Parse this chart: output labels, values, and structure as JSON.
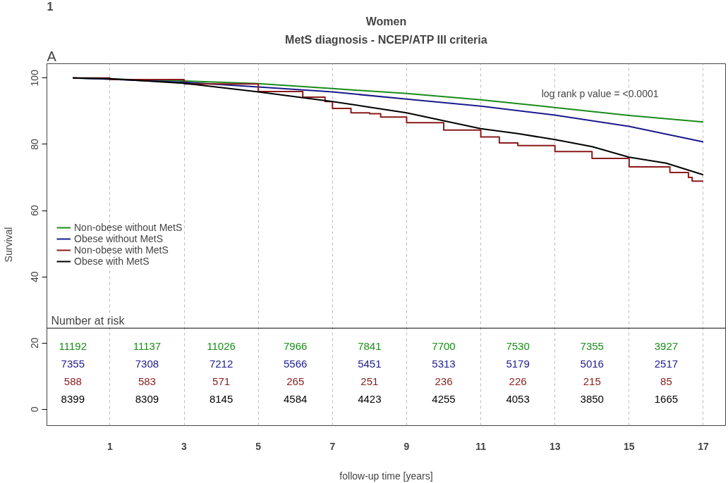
{
  "chart_data": {
    "type": "line",
    "title": "Women",
    "subtitle": "MetS diagnosis - NCEP/ATP III criteria",
    "xlabel": "follow-up time [years]",
    "ylabel": "Survival",
    "xlim": [
      -0.7,
      17.6
    ],
    "ylim": [
      -4.9,
      104.3
    ],
    "xticks": [
      1,
      3,
      5,
      7,
      9,
      11,
      13,
      15,
      17
    ],
    "yticks": [
      0,
      20,
      40,
      60,
      80,
      100
    ],
    "grid": "x",
    "legend": "left",
    "line_style": "solid",
    "marker": "none",
    "series": [
      {
        "name": "Non-obese without MetS",
        "color": "#1a8c1a",
        "x": [
          0,
          1,
          3,
          5,
          7,
          9,
          11,
          13,
          15,
          17
        ],
        "values": [
          100,
          99.7,
          99.1,
          98.3,
          96.8,
          95.3,
          93.4,
          91.1,
          88.7,
          86.7
        ]
      },
      {
        "name": "Obese without MetS",
        "color": "#1a1a8c",
        "x": [
          0,
          1,
          3,
          5,
          7,
          9,
          11,
          13,
          15,
          17
        ],
        "values": [
          100,
          99.6,
          98.7,
          97.3,
          95.8,
          93.6,
          91.5,
          88.8,
          85.4,
          80.7
        ]
      },
      {
        "name": "Non-obese with MetS",
        "color": "#8b1a1a",
        "type": "step",
        "x": [
          0,
          1,
          3,
          5,
          6.2,
          6.8,
          7,
          7.5,
          8,
          8.3,
          9,
          10,
          11,
          11.5,
          12,
          13,
          14,
          15,
          16,
          16.1,
          16.6,
          16.7,
          17
        ],
        "values": [
          100,
          99.5,
          98.2,
          95.9,
          94.2,
          92.9,
          90.8,
          89.5,
          89.2,
          88.2,
          86.5,
          84.3,
          82.2,
          80.4,
          79.6,
          77.8,
          75.7,
          73.2,
          73.2,
          71.5,
          70.0,
          68.9,
          68.9
        ]
      },
      {
        "name": "Obese with MetS",
        "color": "#000000",
        "x": [
          0,
          1,
          3,
          5,
          7,
          8,
          9,
          11,
          12,
          13,
          14,
          15,
          16,
          17
        ],
        "values": [
          100,
          99.8,
          98.4,
          95.8,
          92.9,
          91.2,
          89.5,
          84.7,
          83.2,
          81.4,
          79.3,
          76.1,
          74.3,
          70.8
        ]
      }
    ],
    "ref_lines": [
      {
        "axis": "y",
        "value": 24.5,
        "label": "Number at risk",
        "color": "#000000",
        "line_style": "solid"
      }
    ],
    "annotations": [
      "1",
      "A",
      "log rank p value = <0.0001",
      "11192",
      "11137",
      "11026",
      "7966",
      "7841",
      "7700",
      "7530",
      "7355",
      "3927",
      "7355",
      "7308",
      "7212",
      "5566",
      "5451",
      "5313",
      "5179",
      "5016",
      "2517",
      "588",
      "583",
      "571",
      "265",
      "251",
      "236",
      "226",
      "215",
      "85",
      "8399",
      "8309",
      "8145",
      "4584",
      "4423",
      "4255",
      "4053",
      "3850",
      "1665"
    ]
  }
}
